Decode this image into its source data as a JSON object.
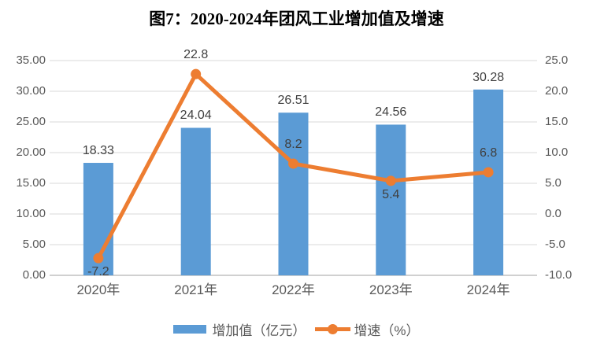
{
  "chart_data": {
    "type": "bar+line combo",
    "title": "图7：2020-2024年团风工业增加值及增速",
    "categories": [
      "2020年",
      "2021年",
      "2022年",
      "2023年",
      "2024年"
    ],
    "series": [
      {
        "name": "增加值（亿元）",
        "type": "bar",
        "axis": "left",
        "color": "#5B9BD5",
        "values": [
          18.33,
          24.04,
          26.51,
          24.56,
          30.28
        ],
        "labels": [
          "18.33",
          "24.04",
          "26.51",
          "24.56",
          "30.28"
        ]
      },
      {
        "name": "增速（%）",
        "type": "line",
        "axis": "right",
        "color": "#ED7D31",
        "values": [
          -7.2,
          22.8,
          8.2,
          5.4,
          6.8
        ],
        "labels": [
          "-7.2",
          "22.8",
          "8.2",
          "5.4",
          "6.8"
        ],
        "label_positions": [
          "below",
          "above",
          "above",
          "below",
          "above"
        ]
      }
    ],
    "left_axis": {
      "min": 0,
      "max": 35,
      "ticks": [
        "35.00",
        "30.00",
        "25.00",
        "20.00",
        "15.00",
        "10.00",
        "5.00",
        "0.00"
      ]
    },
    "right_axis": {
      "min": -10,
      "max": 25,
      "ticks": [
        "25.0",
        "20.0",
        "15.0",
        "10.0",
        "5.0",
        "0.0",
        "-5.0",
        "-10.0"
      ]
    },
    "grid": true,
    "legend_position": "bottom",
    "colors": {
      "grid": "#D9D9D9",
      "axis_line": "#D0D0D0",
      "axis_text": "#595959",
      "data_label": "#404040"
    }
  }
}
